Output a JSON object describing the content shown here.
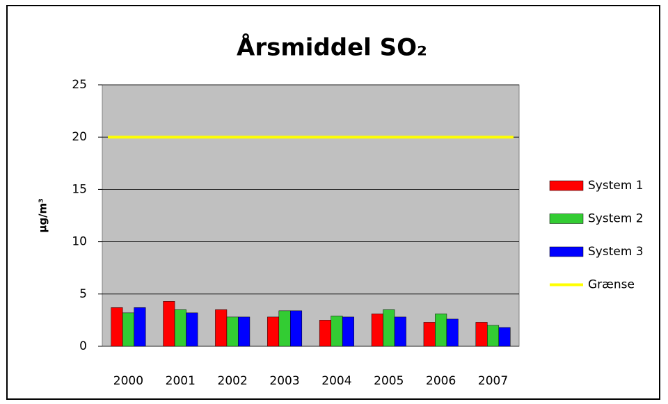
{
  "chart_data": {
    "type": "bar",
    "title": "Årsmiddel SO₂",
    "y_label": "μg/m³",
    "categories": [
      "2000",
      "2001",
      "2002",
      "2003",
      "2004",
      "2005",
      "2006",
      "2007"
    ],
    "series": [
      {
        "name": "System 1",
        "color": "#ff0000",
        "values": [
          3.7,
          4.3,
          3.5,
          2.8,
          2.5,
          3.1,
          2.3,
          2.3
        ]
      },
      {
        "name": "System 2",
        "color": "#33cc33",
        "values": [
          3.2,
          3.5,
          2.8,
          3.4,
          2.9,
          3.5,
          3.1,
          2.0
        ]
      },
      {
        "name": "System 3",
        "color": "#0000ff",
        "values": [
          3.7,
          3.2,
          2.8,
          3.4,
          2.8,
          2.8,
          2.6,
          1.8
        ]
      },
      {
        "name": "Grænse",
        "color": "#ffff00",
        "type": "line",
        "values": [
          20,
          20,
          20,
          20,
          20,
          20,
          20,
          20
        ]
      }
    ],
    "ylim": [
      0,
      25
    ],
    "yticks": [
      0,
      5,
      10,
      15,
      20,
      25
    ],
    "grid": true,
    "plot_background": "#c0c0c0",
    "legend": "right"
  }
}
